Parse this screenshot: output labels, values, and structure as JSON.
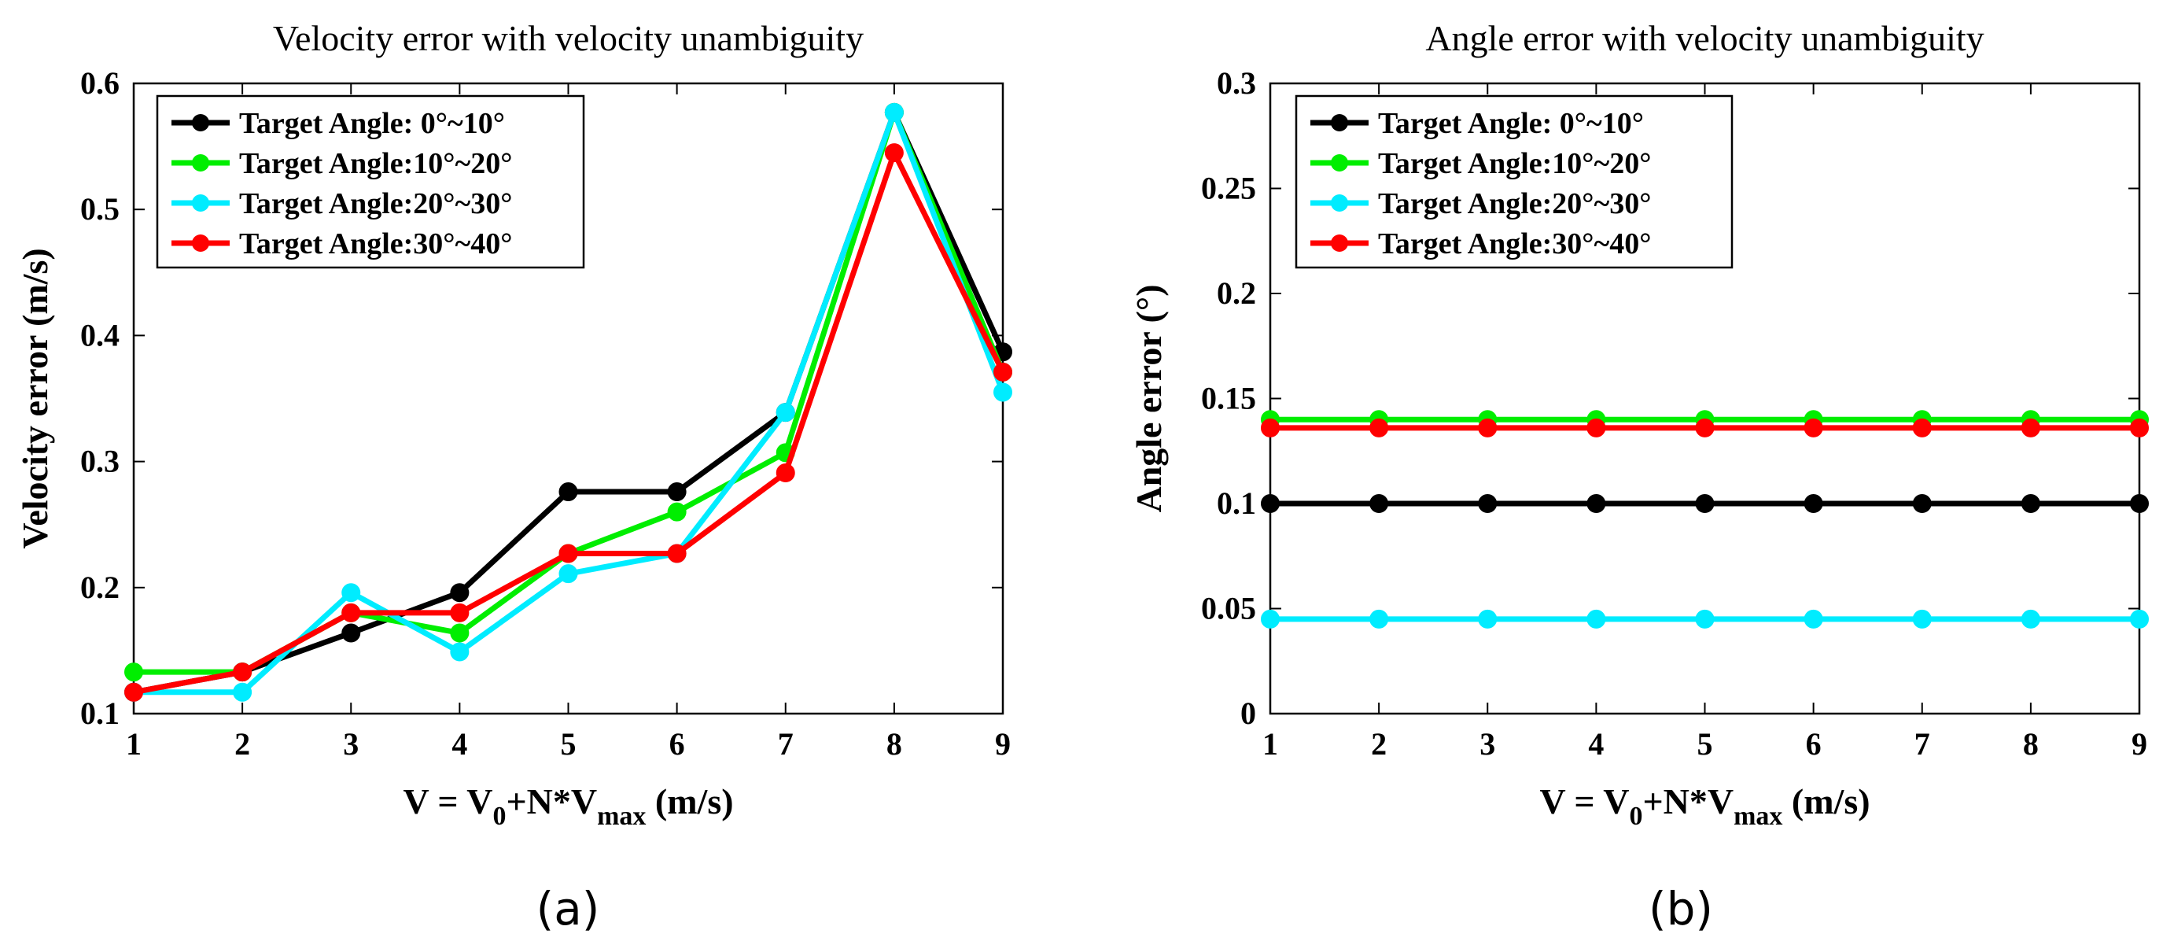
{
  "figure": {
    "labels": [
      "(a)",
      "(b)"
    ]
  },
  "chart_data": [
    {
      "type": "line",
      "title": "Velocity error with velocity unambiguity",
      "xlabel_parts": [
        "V = V",
        "0",
        "+N*V",
        "max",
        " (m/s)"
      ],
      "ylabel": "Velocity error (m/s)",
      "x": [
        1,
        2,
        3,
        4,
        5,
        6,
        7,
        8,
        9
      ],
      "xlim": [
        1,
        9
      ],
      "ylim": [
        0.1,
        0.6
      ],
      "xticks": [
        "1",
        "2",
        "3",
        "4",
        "5",
        "6",
        "7",
        "8",
        "9"
      ],
      "yticks": [
        "0.1",
        "0.2",
        "0.3",
        "0.4",
        "0.5",
        "0.6"
      ],
      "grid": false,
      "legend_position": "top-left",
      "series": [
        {
          "name": "Target Angle: 0°~10°",
          "color": "#000000",
          "values": [
            0.117,
            0.133,
            0.164,
            0.196,
            0.276,
            0.276,
            0.339,
            0.577,
            0.387
          ]
        },
        {
          "name": "Target Angle:10°~20°",
          "color": "#00ee00",
          "values": [
            0.133,
            0.133,
            0.18,
            0.164,
            0.227,
            0.26,
            0.307,
            0.577,
            0.371
          ]
        },
        {
          "name": "Target Angle:20°~30°",
          "color": "#00ecff",
          "values": [
            0.117,
            0.117,
            0.196,
            0.149,
            0.211,
            0.227,
            0.339,
            0.577,
            0.355
          ]
        },
        {
          "name": "Target Angle:30°~40°",
          "color": "#ff0000",
          "values": [
            0.117,
            0.133,
            0.18,
            0.18,
            0.227,
            0.227,
            0.291,
            0.545,
            0.371
          ]
        }
      ]
    },
    {
      "type": "line",
      "title": "Angle error with velocity unambiguity",
      "xlabel_parts": [
        "V = V",
        "0",
        "+N*V",
        "max",
        " (m/s)"
      ],
      "ylabel": "Angle error (°)",
      "x": [
        1,
        2,
        3,
        4,
        5,
        6,
        7,
        8,
        9
      ],
      "xlim": [
        1,
        9
      ],
      "ylim": [
        0,
        0.3
      ],
      "xticks": [
        "1",
        "2",
        "3",
        "4",
        "5",
        "6",
        "7",
        "8",
        "9"
      ],
      "yticks": [
        "0",
        "0.05",
        "0.1",
        "0.15",
        "0.2",
        "0.25",
        "0.3"
      ],
      "grid": false,
      "legend_position": "top-left",
      "series": [
        {
          "name": "Target Angle: 0°~10°",
          "color": "#000000",
          "values": [
            0.1,
            0.1,
            0.1,
            0.1,
            0.1,
            0.1,
            0.1,
            0.1,
            0.1
          ]
        },
        {
          "name": "Target Angle:10°~20°",
          "color": "#00ee00",
          "values": [
            0.14,
            0.14,
            0.14,
            0.14,
            0.14,
            0.14,
            0.14,
            0.14,
            0.14
          ]
        },
        {
          "name": "Target Angle:20°~30°",
          "color": "#00ecff",
          "values": [
            0.045,
            0.045,
            0.045,
            0.045,
            0.045,
            0.045,
            0.045,
            0.045,
            0.045
          ]
        },
        {
          "name": "Target Angle:30°~40°",
          "color": "#ff0000",
          "values": [
            0.136,
            0.136,
            0.136,
            0.136,
            0.136,
            0.136,
            0.136,
            0.136,
            0.136
          ]
        }
      ]
    }
  ]
}
